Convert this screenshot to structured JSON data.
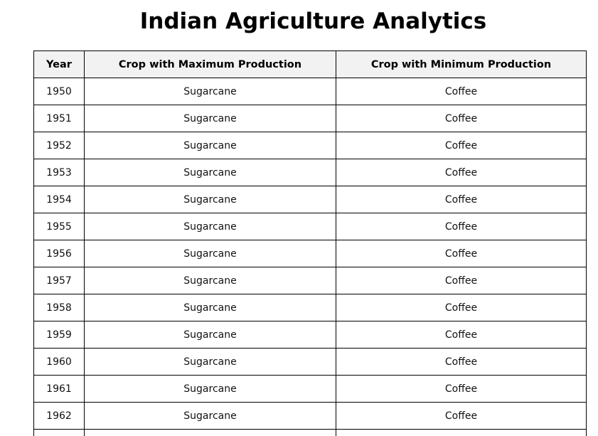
{
  "page": {
    "title": "Indian Agriculture Analytics"
  },
  "table": {
    "headers": [
      "Year",
      "Crop with Maximum Production",
      "Crop with Minimum Production"
    ],
    "rows": [
      {
        "year": "1950",
        "max": "Sugarcane",
        "min": "Coffee"
      },
      {
        "year": "1951",
        "max": "Sugarcane",
        "min": "Coffee"
      },
      {
        "year": "1952",
        "max": "Sugarcane",
        "min": "Coffee"
      },
      {
        "year": "1953",
        "max": "Sugarcane",
        "min": "Coffee"
      },
      {
        "year": "1954",
        "max": "Sugarcane",
        "min": "Coffee"
      },
      {
        "year": "1955",
        "max": "Sugarcane",
        "min": "Coffee"
      },
      {
        "year": "1956",
        "max": "Sugarcane",
        "min": "Coffee"
      },
      {
        "year": "1957",
        "max": "Sugarcane",
        "min": "Coffee"
      },
      {
        "year": "1958",
        "max": "Sugarcane",
        "min": "Coffee"
      },
      {
        "year": "1959",
        "max": "Sugarcane",
        "min": "Coffee"
      },
      {
        "year": "1960",
        "max": "Sugarcane",
        "min": "Coffee"
      },
      {
        "year": "1961",
        "max": "Sugarcane",
        "min": "Coffee"
      },
      {
        "year": "1962",
        "max": "Sugarcane",
        "min": "Coffee"
      },
      {
        "year": "",
        "max": "",
        "min": ""
      }
    ]
  }
}
